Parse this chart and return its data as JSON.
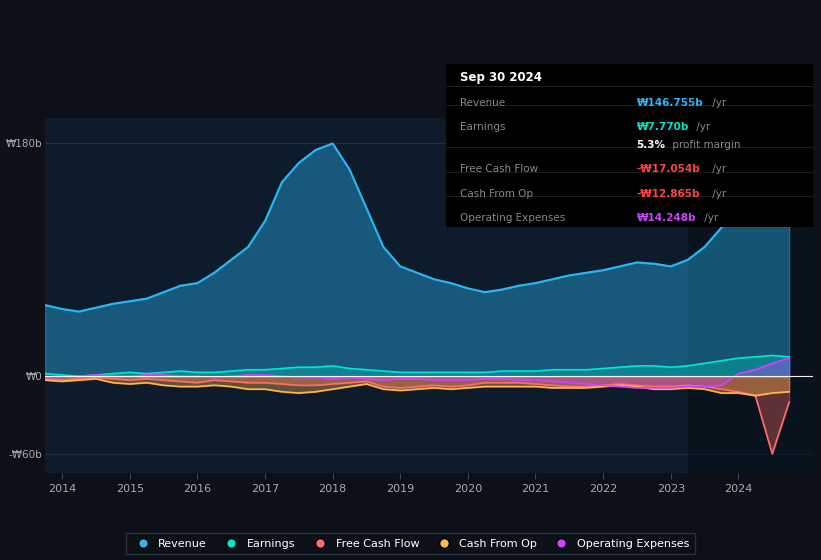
{
  "bg_color": "#0d1117",
  "plot_bg_color": "#0d1b2a",
  "grid_color": "#1e3a5f",
  "years": [
    2013.75,
    2014.0,
    2014.25,
    2014.5,
    2014.75,
    2015.0,
    2015.25,
    2015.5,
    2015.75,
    2016.0,
    2016.25,
    2016.5,
    2016.75,
    2017.0,
    2017.25,
    2017.5,
    2017.75,
    2018.0,
    2018.25,
    2018.5,
    2018.75,
    2019.0,
    2019.25,
    2019.5,
    2019.75,
    2020.0,
    2020.25,
    2020.5,
    2020.75,
    2021.0,
    2021.25,
    2021.5,
    2021.75,
    2022.0,
    2022.25,
    2022.5,
    2022.75,
    2023.0,
    2023.25,
    2023.5,
    2023.75,
    2024.0,
    2024.25,
    2024.5,
    2024.75
  ],
  "revenue": [
    55,
    52,
    50,
    53,
    56,
    58,
    60,
    65,
    70,
    72,
    80,
    90,
    100,
    120,
    150,
    165,
    175,
    180,
    160,
    130,
    100,
    85,
    80,
    75,
    72,
    68,
    65,
    67,
    70,
    72,
    75,
    78,
    80,
    82,
    85,
    88,
    87,
    85,
    90,
    100,
    115,
    130,
    140,
    148,
    150
  ],
  "earnings": [
    2,
    1,
    0,
    1,
    2,
    3,
    2,
    3,
    4,
    3,
    3,
    4,
    5,
    5,
    6,
    7,
    7,
    8,
    6,
    5,
    4,
    3,
    3,
    3,
    3,
    3,
    3,
    4,
    4,
    4,
    5,
    5,
    5,
    6,
    7,
    8,
    8,
    7,
    8,
    10,
    12,
    14,
    15,
    16,
    15
  ],
  "free_cash_flow": [
    -2,
    -3,
    -2,
    -1,
    -2,
    -3,
    -2,
    -3,
    -4,
    -5,
    -3,
    -4,
    -5,
    -5,
    -6,
    -7,
    -7,
    -6,
    -5,
    -4,
    -8,
    -9,
    -8,
    -7,
    -8,
    -7,
    -5,
    -5,
    -5,
    -6,
    -7,
    -8,
    -8,
    -7,
    -6,
    -7,
    -8,
    -8,
    -7,
    -8,
    -10,
    -12,
    -15,
    -60,
    -20
  ],
  "cash_from_op": [
    -3,
    -4,
    -3,
    -2,
    -5,
    -6,
    -5,
    -7,
    -8,
    -8,
    -7,
    -8,
    -10,
    -10,
    -12,
    -13,
    -12,
    -10,
    -8,
    -6,
    -10,
    -11,
    -10,
    -9,
    -10,
    -9,
    -8,
    -8,
    -8,
    -8,
    -9,
    -9,
    -9,
    -8,
    -7,
    -8,
    -10,
    -10,
    -9,
    -10,
    -13,
    -13,
    -15,
    -13,
    -12
  ],
  "operating_expenses": [
    -1,
    -1,
    0,
    1,
    0,
    0,
    1,
    1,
    0,
    0,
    -1,
    0,
    1,
    1,
    0,
    -1,
    -1,
    -2,
    -1,
    -2,
    -3,
    -2,
    -2,
    -3,
    -3,
    -3,
    -2,
    -2,
    -3,
    -3,
    -4,
    -5,
    -6,
    -7,
    -8,
    -9,
    -9,
    -9,
    -8,
    -8,
    -7,
    2,
    5,
    10,
    14
  ],
  "ylim": [
    -75,
    200
  ],
  "yticks": [
    -60,
    0,
    180
  ],
  "ytick_labels": [
    "-₩60b",
    "₩0",
    "₩180b"
  ],
  "xtick_years": [
    2014,
    2015,
    2016,
    2017,
    2018,
    2019,
    2020,
    2021,
    2022,
    2023,
    2024
  ],
  "x_min": 2013.75,
  "x_max": 2025.1,
  "colors": {
    "revenue": "#29b6f6",
    "earnings": "#00e5cc",
    "free_cash_flow": "#ff6b6b",
    "cash_from_op": "#ffb74d",
    "operating_expenses": "#cc44ff"
  },
  "legend_labels": [
    "Revenue",
    "Earnings",
    "Free Cash Flow",
    "Cash From Op",
    "Operating Expenses"
  ],
  "legend_colors": [
    "#29b6f6",
    "#00e5cc",
    "#ff6b6b",
    "#ffb74d",
    "#cc44ff"
  ],
  "info_box": {
    "date": "Sep 30 2024",
    "rows": [
      {
        "label": "Revenue",
        "value": "₩146.755b",
        "suffix": " /yr",
        "value_color": "#29b6f6",
        "separator_above": true
      },
      {
        "label": "Earnings",
        "value": "₩7.770b",
        "suffix": " /yr",
        "value_color": "#00e5cc",
        "separator_above": true
      },
      {
        "label": "",
        "value": "5.3%",
        "suffix": " profit margin",
        "value_color": "#ffffff",
        "separator_above": false
      },
      {
        "label": "Free Cash Flow",
        "value": "-₩17.054b",
        "suffix": " /yr",
        "value_color": "#ff4444",
        "separator_above": true
      },
      {
        "label": "Cash From Op",
        "value": "-₩12.865b",
        "suffix": " /yr",
        "value_color": "#ff4444",
        "separator_above": true
      },
      {
        "label": "Operating Expenses",
        "value": "₩14.248b",
        "suffix": " /yr",
        "value_color": "#cc44ff",
        "separator_above": true
      }
    ]
  }
}
